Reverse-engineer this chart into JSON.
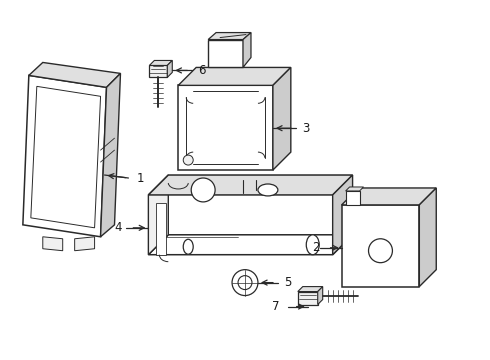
{
  "bg_color": "#ffffff",
  "line_color": "#2a2a2a",
  "text_color": "#1a1a1a",
  "fig_width": 4.9,
  "fig_height": 3.6,
  "dpi": 100
}
